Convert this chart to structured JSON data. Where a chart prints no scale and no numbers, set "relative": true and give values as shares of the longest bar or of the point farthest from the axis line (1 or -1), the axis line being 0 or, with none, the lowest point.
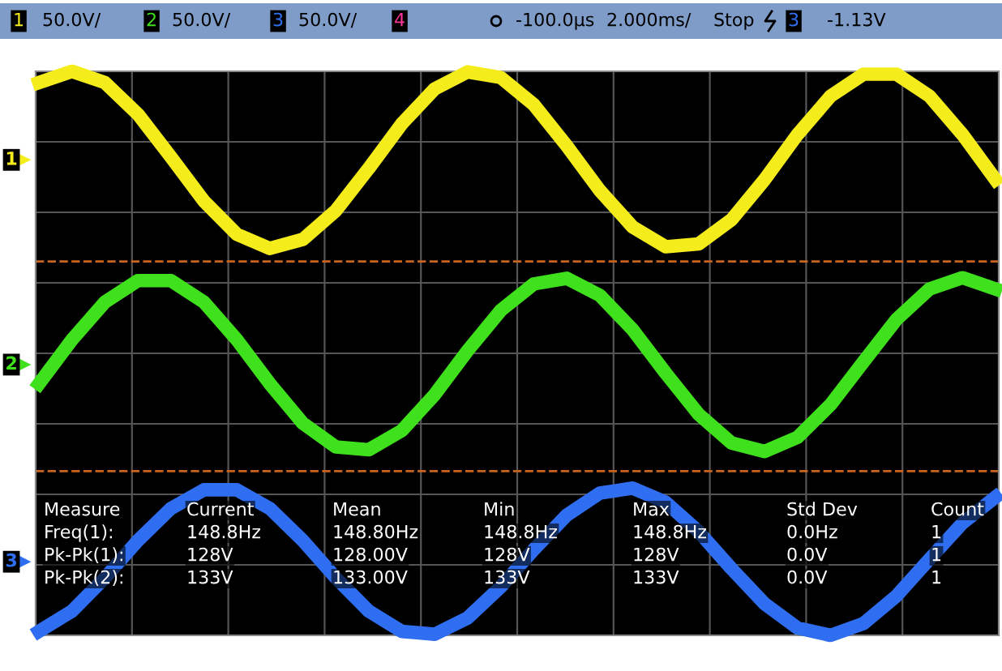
{
  "chart_data": {
    "type": "line",
    "relative": true,
    "grid": true,
    "legend": "left",
    "line_style": "solid",
    "marker": "none",
    "categories": [
      null,
      null,
      null,
      null,
      null,
      null,
      null,
      null,
      null,
      null,
      null,
      null,
      null,
      null,
      null,
      null,
      null,
      null,
      null,
      null,
      null,
      null,
      null,
      null,
      null,
      null,
      null,
      null,
      null,
      null
    ],
    "series": [
      {
        "name": "1",
        "color": "#f5ec1c",
        "values": [
          0.98,
          1.0,
          0.98,
          0.924,
          0.848,
          0.77,
          0.711,
          0.686,
          0.702,
          0.753,
          0.828,
          0.907,
          0.969,
          0.999,
          0.989,
          0.941,
          0.868,
          0.789,
          0.724,
          0.689,
          0.694,
          0.737,
          0.808,
          0.888,
          0.956,
          0.995,
          0.995,
          0.956,
          0.888,
          0.808
        ]
      },
      {
        "name": "2",
        "color": "#3fe01c",
        "values": [
          0.446,
          0.524,
          0.591,
          0.629,
          0.629,
          0.591,
          0.524,
          0.446,
          0.376,
          0.334,
          0.329,
          0.363,
          0.427,
          0.505,
          0.576,
          0.623,
          0.633,
          0.603,
          0.542,
          0.465,
          0.392,
          0.341,
          0.326,
          0.351,
          0.409,
          0.485,
          0.56,
          0.614,
          0.634,
          0.614
        ]
      },
      {
        "name": "3",
        "color": "#2f6ef0",
        "values": [
          0.007,
          0.043,
          0.102,
          0.168,
          0.225,
          0.258,
          0.258,
          0.225,
          0.168,
          0.102,
          0.043,
          0.007,
          0.002,
          0.031,
          0.086,
          0.152,
          0.213,
          0.252,
          0.261,
          0.236,
          0.184,
          0.118,
          0.056,
          0.013,
          0.0,
          0.021,
          0.07,
          0.135,
          0.199,
          0.245
        ]
      }
    ],
    "ref_lines": [
      {
        "axis": "y",
        "value": 0.663,
        "color": "#c8641e",
        "line_style": "dashed"
      },
      {
        "axis": "y",
        "value": 0.291,
        "color": "#c8641e",
        "line_style": "dashed"
      }
    ],
    "annotations": [
      "1",
      "50.0V/",
      "2",
      "50.0V/",
      "3",
      "50.0V/",
      "4",
      "-100.0µs",
      "2.000ms/",
      "Stop",
      "3",
      "-1.13V",
      "Measure",
      "Current",
      "Mean",
      "Min",
      "Max",
      "Std Dev",
      "Count",
      "Freq(1):",
      "148.8Hz",
      "148.80Hz",
      "148.8Hz",
      "148.8Hz",
      "0.0Hz",
      "1",
      "Pk-Pk(1):",
      "128V",
      "128.00V",
      "128V",
      "128V",
      "0.0V",
      "1",
      "Pk-Pk(2):",
      "133V",
      "133.00V",
      "133V",
      "133V",
      "0.0V",
      "1"
    ]
  }
}
